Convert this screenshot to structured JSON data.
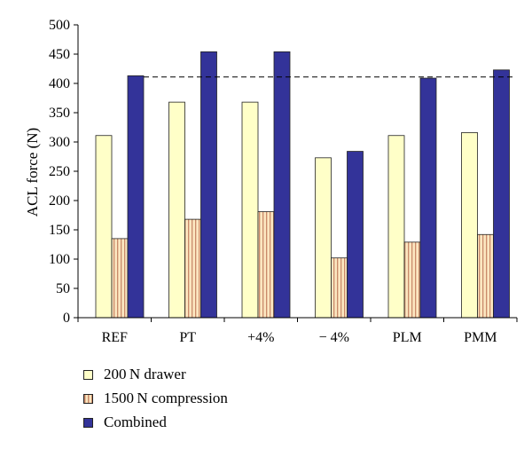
{
  "chart_data": {
    "type": "bar",
    "ylabel": "ACL force (N)",
    "ylim": [
      0,
      500
    ],
    "yticks": [
      0,
      50,
      100,
      150,
      200,
      250,
      300,
      350,
      400,
      450,
      500
    ],
    "categories": [
      "REF",
      "PT",
      "+4%",
      "− 4%",
      "PLM",
      "PMM"
    ],
    "series": [
      {
        "name": "200 N drawer",
        "values": [
          311,
          368,
          368,
          273,
          311,
          316
        ]
      },
      {
        "name": "1500 N compression",
        "values": [
          135,
          168,
          181,
          102,
          129,
          142
        ]
      },
      {
        "name": "Combined",
        "values": [
          413,
          454,
          454,
          284,
          409,
          423
        ]
      }
    ],
    "reference_line": {
      "value": 411,
      "style": "dashed"
    },
    "legend_position": "bottom-left"
  },
  "colors": {
    "drawer": "#ffffc8",
    "compression_base": "#fbe6c0",
    "compression_stripe": "#c98a6a",
    "combined": "#333399",
    "axis": "#000000"
  },
  "legend": {
    "drawer": "200 N drawer",
    "compression": "1500 N compression",
    "combined": "Combined"
  }
}
